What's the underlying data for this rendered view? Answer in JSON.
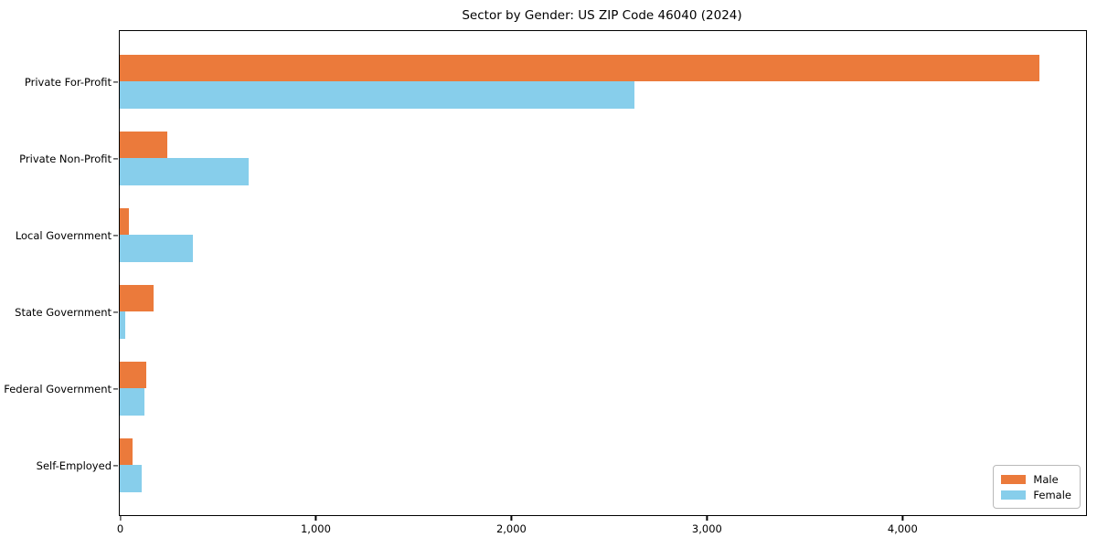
{
  "chart_data": {
    "type": "bar",
    "orientation": "horizontal",
    "title": "Sector by Gender: US ZIP Code 46040 (2024)",
    "categories": [
      "Private For-Profit",
      "Private Non-Profit",
      "Local Government",
      "State Government",
      "Federal Government",
      "Self-Employed"
    ],
    "series": [
      {
        "name": "Male",
        "color": "#EB7A3B",
        "values": [
          4700,
          245,
          45,
          175,
          137,
          65
        ]
      },
      {
        "name": "Female",
        "color": "#87CEEB",
        "values": [
          2630,
          660,
          375,
          28,
          125,
          110
        ]
      }
    ],
    "xlabel": "",
    "ylabel": "",
    "xlim": [
      0,
      4940
    ],
    "x_tick_values": [
      0,
      1000,
      2000,
      3000,
      4000
    ],
    "x_tick_labels": [
      "0",
      "1,000",
      "2,000",
      "3,000",
      "4,000"
    ],
    "grid": false,
    "legend_position": "lower right",
    "background_color": "#ffffff",
    "spine_color": "#000000"
  }
}
